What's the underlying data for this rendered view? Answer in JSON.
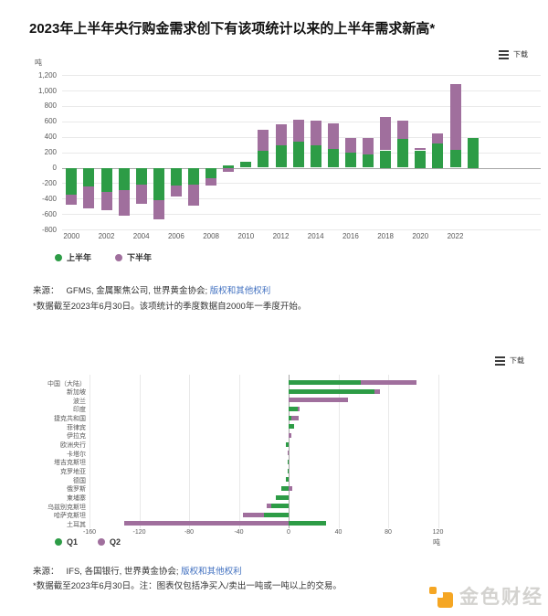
{
  "title": "2023年上半年央行购金需求创下有该项统计以来的上半年需求新高*",
  "watermark": "金色财经",
  "icons": {
    "chart_menu": "hamburger-menu",
    "watermark_logo": "jinse-finance-logo"
  },
  "chart1": {
    "download_label": "下载",
    "unit": "吨",
    "source_prefix": "来源：",
    "source": "GFMS, 金属聚焦公司, 世界黄金协会;",
    "source_link": "版权和其他权利",
    "footnote": "*数据截至2023年6月30日。该项统计的季度数据自2000年一季度开始。"
  },
  "chart2": {
    "download_label": "下载",
    "unit": "吨",
    "source_prefix": "来源：",
    "source": "IFS, 各国银行, 世界黄金协会;",
    "source_link": "版权和其他权利",
    "footnote": "*数据截至2023年6月30日。注：图表仅包括净买入/卖出一吨或一吨以上的交易。"
  },
  "chart_data": [
    {
      "type": "bar",
      "stacked": true,
      "orientation": "vertical",
      "title": "2023年上半年央行购金需求创下有该项统计以来的上半年需求新高*",
      "ylabel": "吨",
      "ylim": [
        -800,
        1200
      ],
      "grid": "horizontal",
      "legend_position": "bottom",
      "y_tick_values": [
        1200,
        1000,
        800,
        600,
        400,
        200,
        0,
        -200,
        -400,
        -600,
        -800
      ],
      "y_tick_labels": [
        "1,200",
        "1,000",
        "800",
        "600",
        "400",
        "200",
        "0",
        "-200",
        "-400",
        "-600",
        "-800"
      ],
      "categories": [
        "2000",
        "2001",
        "2002",
        "2003",
        "2004",
        "2005",
        "2006",
        "2007",
        "2008",
        "2009",
        "2010",
        "2011",
        "2012",
        "2013",
        "2014",
        "2015",
        "2016",
        "2017",
        "2018",
        "2019",
        "2020",
        "2021",
        "2022",
        "2023"
      ],
      "x_tick_labels": [
        "2000",
        "2002",
        "2004",
        "2006",
        "2008",
        "2010",
        "2012",
        "2014",
        "2016",
        "2018",
        "2020",
        "2022"
      ],
      "series": [
        {
          "name": "上半年",
          "color": "#2d9c46",
          "values": [
            -350,
            -245,
            -315,
            -295,
            -215,
            -425,
            -225,
            -215,
            -130,
            35,
            80,
            215,
            285,
            340,
            285,
            245,
            190,
            175,
            225,
            370,
            225,
            320,
            230,
            390
          ]
        },
        {
          "name": "下半年",
          "color": "#a06f9d",
          "values": [
            -130,
            -280,
            -240,
            -330,
            -255,
            -250,
            -145,
            -280,
            -105,
            -50,
            0,
            275,
            275,
            285,
            320,
            330,
            200,
            205,
            430,
            240,
            25,
            130,
            850,
            0
          ]
        }
      ]
    },
    {
      "type": "bar",
      "stacked": true,
      "orientation": "horizontal",
      "xlabel": "吨",
      "xlim": [
        -160,
        120
      ],
      "grid": "vertical",
      "legend_position": "bottom",
      "x_tick_values": [
        -160,
        -120,
        -80,
        -40,
        0,
        40,
        80,
        120
      ],
      "x_tick_labels": [
        "-160",
        "-120",
        "-80",
        "-40",
        "0",
        "40",
        "80",
        "120"
      ],
      "categories": [
        "中国（大陆）",
        "新加坡",
        "波兰",
        "印度",
        "捷克共和国",
        "菲律宾",
        "伊拉克",
        "欧洲央行",
        "卡塔尔",
        "塔吉克斯坦",
        "克罗地亚",
        "德国",
        "俄罗斯",
        "柬埔寨",
        "乌兹别克斯坦",
        "哈萨克斯坦",
        "土耳其"
      ],
      "series": [
        {
          "name": "Q1",
          "color": "#2d9c46",
          "values": [
            58,
            69,
            0,
            7,
            2,
            4,
            0,
            -2,
            0,
            -1,
            -1,
            -2,
            -6,
            -10,
            -14,
            -20,
            30
          ]
        },
        {
          "name": "Q2",
          "color": "#a06f9d",
          "values": [
            45,
            4,
            48,
            2,
            6,
            0,
            2,
            0,
            -1,
            0,
            0,
            0,
            3,
            0,
            -4,
            -17,
            -132
          ]
        }
      ]
    }
  ]
}
